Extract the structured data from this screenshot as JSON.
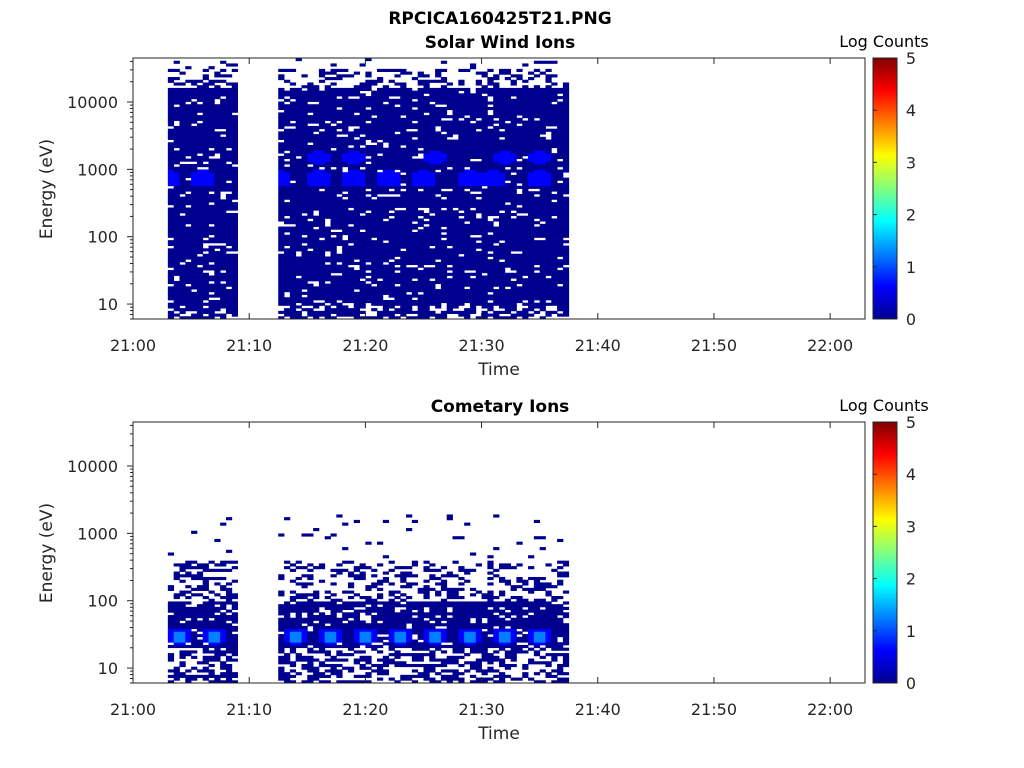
{
  "figure_title": "RPCICA160425T21.PNG",
  "colormap": [
    "#00008f",
    "#0000ff",
    "#0080ff",
    "#00ffff",
    "#80ff80",
    "#ffff00",
    "#ff8000",
    "#ff0000",
    "#800000"
  ],
  "chart_data": [
    {
      "type": "heatmap",
      "title": "Solar Wind Ions",
      "xlabel": "Time",
      "ylabel": "Energy (eV)",
      "x_ticks": [
        "21:00",
        "21:10",
        "21:20",
        "21:30",
        "21:40",
        "21:50",
        "22:00"
      ],
      "y_ticks": [
        "10",
        "100",
        "1000",
        "10000"
      ],
      "y_scale": "log",
      "xlim": [
        "21:00",
        "22:03"
      ],
      "ylim": [
        6,
        45000
      ],
      "colorbar": {
        "label": "Log Counts",
        "ticks": [
          "0",
          "1",
          "2",
          "3",
          "4",
          "5"
        ],
        "range": [
          0,
          5
        ]
      },
      "data_intervals": [
        [
          "21:03",
          "21:09"
        ],
        [
          "21:12:30",
          "21:37:30"
        ]
      ],
      "peaks": [
        {
          "energy_eV": 750,
          "level": 0.9,
          "times": [
            "21:03",
            "21:06",
            "21:12:30",
            "21:16",
            "21:19",
            "21:22",
            "21:25",
            "21:29",
            "21:31",
            "21:35"
          ]
        },
        {
          "energy_eV": 1500,
          "level": 0.6,
          "times": [
            "21:16",
            "21:19",
            "21:26",
            "21:32",
            "21:35"
          ]
        }
      ]
    },
    {
      "type": "heatmap",
      "title": "Cometary Ions",
      "xlabel": "Time",
      "ylabel": "Energy (eV)",
      "x_ticks": [
        "21:00",
        "21:10",
        "21:20",
        "21:30",
        "21:40",
        "21:50",
        "22:00"
      ],
      "y_ticks": [
        "10",
        "100",
        "1000",
        "10000"
      ],
      "y_scale": "log",
      "xlim": [
        "21:00",
        "22:03"
      ],
      "ylim": [
        6,
        45000
      ],
      "colorbar": {
        "label": "Log Counts",
        "ticks": [
          "0",
          "1",
          "2",
          "3",
          "4",
          "5"
        ],
        "range": [
          0,
          5
        ]
      },
      "data_intervals": [
        [
          "21:03",
          "21:09"
        ],
        [
          "21:12:30",
          "21:37:30"
        ]
      ],
      "peaks": [
        {
          "energy_eV": 30,
          "level": 1.4,
          "times": [
            "21:04",
            "21:07",
            "21:14",
            "21:17",
            "21:20",
            "21:23",
            "21:26",
            "21:29",
            "21:32",
            "21:35"
          ]
        }
      ]
    }
  ]
}
